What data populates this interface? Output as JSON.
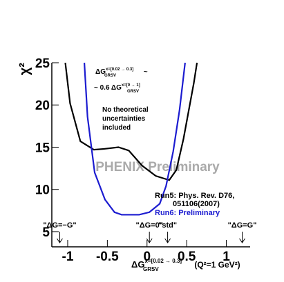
{
  "chart_data": {
    "type": "line",
    "x_label": {
      "main": "ΔG",
      "sup": "x=[0.02 → 0.3]",
      "sub": "GRSV",
      "tail": " (Q²=1 GeV²)"
    },
    "y_label": "χ²",
    "xlim": [
      -1.2,
      1.3
    ],
    "ylim": [
      3.2,
      25
    ],
    "xticks": [
      -1,
      -0.5,
      0,
      0.5,
      1
    ],
    "yticks": [
      5,
      10,
      15,
      20,
      25
    ],
    "series": [
      {
        "name": "Run5: Phys. Rev. D76,",
        "name_line2": "051106(2007)",
        "color": "#000000",
        "x": [
          -1.03,
          -0.97,
          -0.84,
          -0.67,
          -0.54,
          -0.36,
          -0.23,
          -0.06,
          0.11,
          0.28,
          0.37,
          0.46,
          0.59,
          0.63
        ],
        "values": [
          25,
          20.2,
          15.7,
          14.7,
          14.8,
          15,
          14.6,
          12.8,
          11.6,
          11.1,
          12.3,
          16,
          22.6,
          25
        ]
      },
      {
        "name": "Run6: Preliminary",
        "color": "#1c1cd0",
        "x": [
          -0.79,
          -0.75,
          -0.66,
          -0.53,
          -0.41,
          -0.32,
          -0.1,
          0.03,
          0.16,
          0.24,
          0.33,
          0.41,
          0.48
        ],
        "values": [
          25,
          18.6,
          12,
          8.8,
          7.3,
          7.0,
          7.0,
          7.3,
          8.3,
          10.4,
          14.5,
          19.4,
          25
        ]
      }
    ],
    "ratio_note": {
      "l1_main": "ΔG",
      "l1_sup": "x=[0.02 → 0.3]",
      "l1_sub": "GRSV",
      "l1_tail": " ~",
      "l2_main": "~ 0.6 ΔG",
      "l2_sup": "x=[0 → 1]",
      "l2_sub": "GRSV"
    },
    "note": [
      "No theoretical",
      "uncertainties",
      "included"
    ],
    "watermark": "PHENIX Preliminary",
    "annotations": [
      {
        "text": "\"ΔG=−G\"",
        "x": -1.1
      },
      {
        "text": "\"ΔG=0\"",
        "x": 0.03
      },
      {
        "text": "\"std\"",
        "x": 0.26
      },
      {
        "text": "\"ΔG=G\"",
        "x": 1.2
      }
    ]
  }
}
